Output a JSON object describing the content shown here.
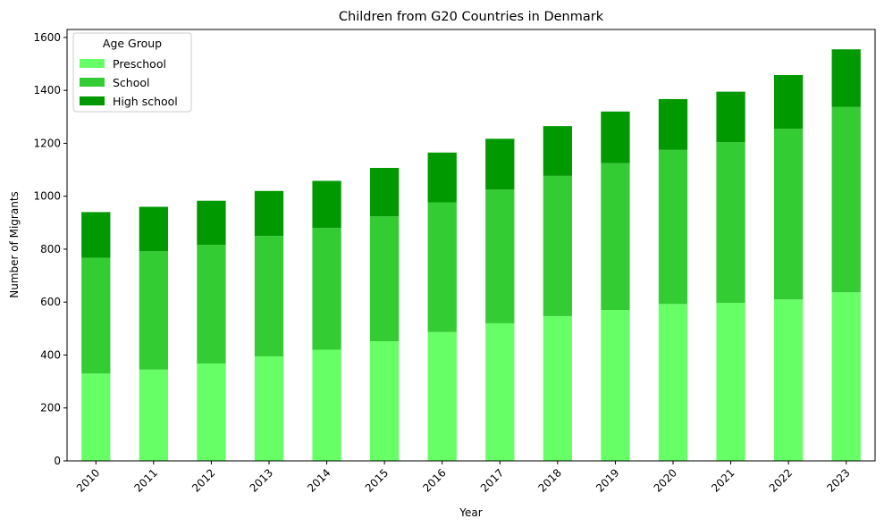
{
  "chart_data": {
    "type": "bar",
    "stacked": true,
    "title": "Children from G20 Countries in Denmark",
    "xlabel": "Year",
    "ylabel": "Number of Migrants",
    "categories": [
      "2010",
      "2011",
      "2012",
      "2013",
      "2014",
      "2015",
      "2016",
      "2017",
      "2018",
      "2019",
      "2020",
      "2021",
      "2022",
      "2023"
    ],
    "ylim": [
      0,
      1630
    ],
    "yticks": [
      0,
      200,
      400,
      600,
      800,
      1000,
      1200,
      1400,
      1600
    ],
    "legend": {
      "title": "Age Group",
      "placement": "top-left"
    },
    "series": [
      {
        "name": "Preschool",
        "color": "#66ff66",
        "values": [
          330,
          345,
          368,
          395,
          420,
          452,
          487,
          520,
          547,
          570,
          593,
          597,
          610,
          637
        ]
      },
      {
        "name": "School",
        "color": "#33cc33",
        "values": [
          437,
          447,
          448,
          455,
          460,
          472,
          490,
          505,
          530,
          555,
          582,
          607,
          645,
          700
        ]
      },
      {
        "name": "High school",
        "color": "#009900",
        "values": [
          173,
          168,
          167,
          170,
          178,
          183,
          188,
          192,
          188,
          195,
          192,
          191,
          203,
          218
        ]
      }
    ]
  }
}
